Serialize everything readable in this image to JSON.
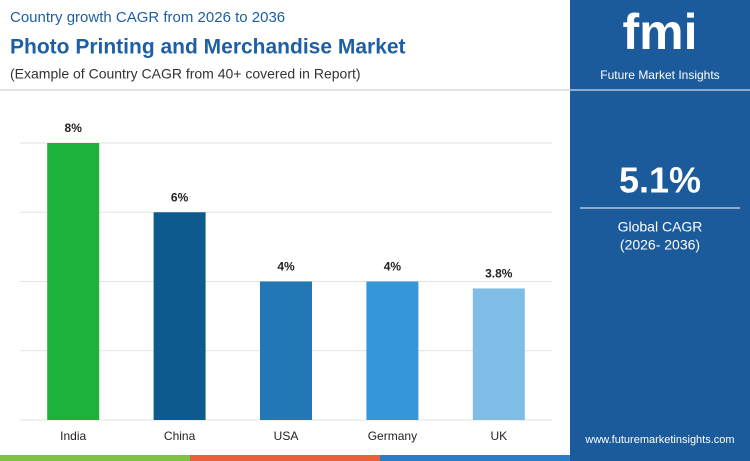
{
  "header": {
    "kicker": "Country growth CAGR from 2026 to 2036",
    "title": "Photo Printing and Merchandise Market",
    "subtitle": "(Example of Country CAGR from 40+ covered in Report)"
  },
  "chart_data": {
    "type": "bar",
    "categories": [
      "India",
      "China",
      "USA",
      "Germany",
      "UK"
    ],
    "values": [
      8,
      6,
      4,
      4,
      3.8
    ],
    "value_labels": [
      "8%",
      "6%",
      "4%",
      "4%",
      "3.8%"
    ],
    "colors": [
      "#1db33a",
      "#0e5a8f",
      "#2277b5",
      "#3596d8",
      "#7fbde6"
    ],
    "ylim": [
      0,
      8
    ],
    "yticks": [
      0,
      2,
      4,
      6,
      8
    ],
    "grid": true
  },
  "sidebar": {
    "logo": "fmi",
    "brand": "Future Market Insights",
    "headline": "5.1%",
    "label": "Global CAGR",
    "period": "(2026- 2036)",
    "website": "www.futuremarketinsights.com"
  }
}
